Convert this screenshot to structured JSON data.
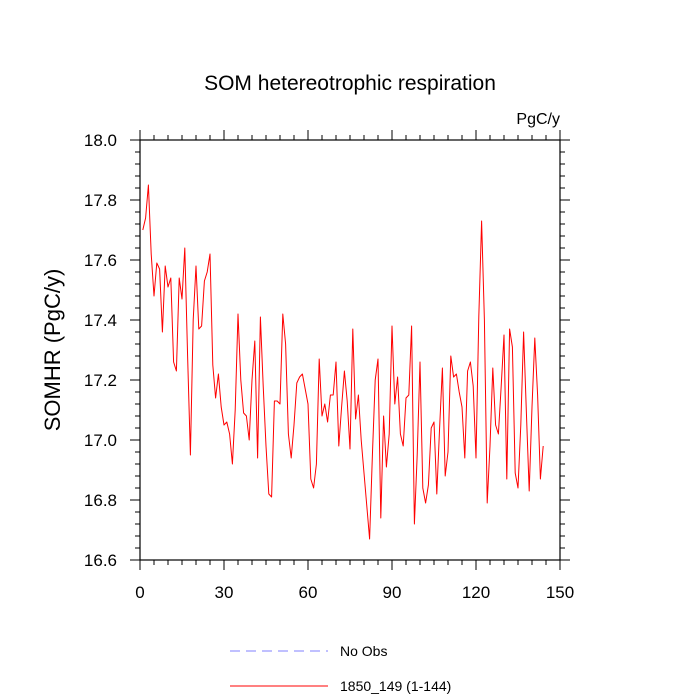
{
  "chart_data": {
    "type": "line",
    "title": "SOM hetereotrophic respiration",
    "units": "PgC/y",
    "xlabel": "",
    "ylabel": "SOMHR  (PgC/y)",
    "xlim": [
      0,
      150
    ],
    "ylim": [
      16.6,
      18.0
    ],
    "x_ticks": [
      0,
      30,
      60,
      90,
      120,
      150
    ],
    "x_tick_labels": [
      "0",
      "30",
      "60",
      "90",
      "120",
      "150"
    ],
    "y_ticks": [
      16.6,
      16.8,
      17.0,
      17.2,
      17.4,
      17.6,
      17.8,
      18.0
    ],
    "y_tick_labels": [
      "16.6",
      "16.8",
      "17.0",
      "17.2",
      "17.4",
      "17.6",
      "17.8",
      "18.0"
    ],
    "x_minor_step": 5,
    "y_minor_step": 0.04,
    "grid": false,
    "legend": [
      {
        "label": "No Obs",
        "color": "#8080ff",
        "dash": true
      },
      {
        "label": "1850_149 (1-144)",
        "color": "#ff0000",
        "dash": false
      }
    ],
    "series": [
      {
        "name": "1850_149 (1-144)",
        "color": "#ff0000",
        "x_start": 1,
        "values": [
          17.7,
          17.74,
          17.85,
          17.62,
          17.48,
          17.59,
          17.57,
          17.36,
          17.58,
          17.51,
          17.54,
          17.26,
          17.23,
          17.54,
          17.47,
          17.64,
          17.28,
          16.95,
          17.4,
          17.58,
          17.37,
          17.38,
          17.53,
          17.56,
          17.62,
          17.25,
          17.14,
          17.22,
          17.11,
          17.05,
          17.06,
          17.02,
          16.92,
          17.1,
          17.42,
          17.2,
          17.09,
          17.08,
          17.0,
          17.2,
          17.33,
          16.94,
          17.41,
          17.18,
          16.98,
          16.82,
          16.81,
          17.13,
          17.13,
          17.12,
          17.42,
          17.32,
          17.02,
          16.94,
          17.05,
          17.19,
          17.21,
          17.22,
          17.17,
          17.12,
          16.87,
          16.84,
          16.92,
          17.27,
          17.08,
          17.12,
          17.06,
          17.15,
          17.15,
          17.26,
          16.98,
          17.11,
          17.23,
          17.13,
          16.97,
          17.37,
          17.07,
          17.15,
          17.0,
          16.89,
          16.78,
          16.67,
          16.95,
          17.2,
          17.27,
          16.74,
          17.08,
          16.91,
          17.02,
          17.38,
          17.12,
          17.21,
          17.02,
          16.98,
          17.14,
          17.15,
          17.38,
          16.72,
          16.95,
          17.26,
          16.84,
          16.79,
          16.85,
          17.04,
          17.06,
          16.82,
          17.04,
          17.24,
          16.88,
          16.96,
          17.28,
          17.21,
          17.22,
          17.16,
          17.11,
          16.94,
          17.23,
          17.26,
          17.18,
          16.94,
          17.41,
          17.73,
          17.4,
          16.79,
          16.98,
          17.24,
          17.05,
          17.02,
          17.18,
          17.35,
          16.87,
          17.37,
          17.31,
          16.89,
          16.84,
          17.05,
          17.36,
          17.09,
          16.83,
          17.11,
          17.34,
          17.15,
          16.87,
          16.98
        ]
      }
    ]
  }
}
